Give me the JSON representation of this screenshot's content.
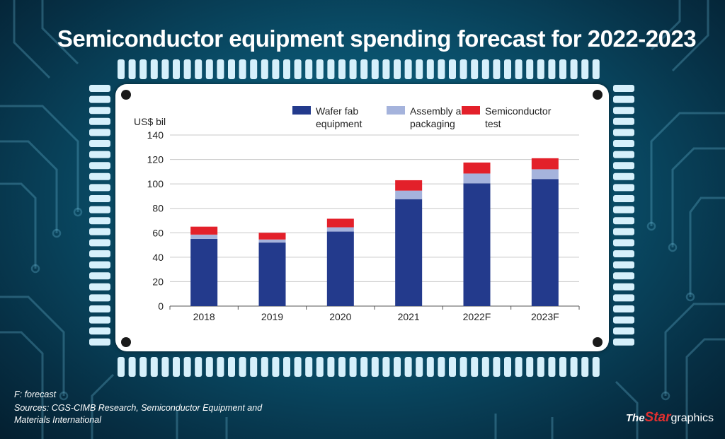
{
  "title": "Semiconductor equipment spending forecast for 2022-2023",
  "footnote": {
    "forecast_note": "F: forecast",
    "sources_line1": "Sources: CGS-CIMB Research, Semiconductor Equipment and",
    "sources_line2": "Materials International"
  },
  "brand": {
    "part1": "The",
    "part2": "Star",
    "part3": "graphics"
  },
  "colors": {
    "wafer": "#233a8c",
    "assembly": "#a5b3dc",
    "test": "#e3202a",
    "grid": "#c8c8c8"
  },
  "chart_data": {
    "type": "bar",
    "stacked": true,
    "categories": [
      "2018",
      "2019",
      "2020",
      "2021",
      "2022F",
      "2023F"
    ],
    "series": [
      {
        "name": "Wafer fab equipment",
        "color": "#233a8c",
        "values": [
          55.0,
          52.0,
          61.0,
          87.5,
          100.5,
          104.0
        ]
      },
      {
        "name": "Assembly and packaging",
        "color": "#a5b3dc",
        "values": [
          3.5,
          2.5,
          3.5,
          7.0,
          8.0,
          8.0
        ]
      },
      {
        "name": "Semiconductor test",
        "color": "#e3202a",
        "values": [
          6.5,
          5.5,
          7.0,
          8.5,
          9.0,
          9.0
        ]
      }
    ],
    "legend_labels": [
      [
        "Wafer fab",
        "equipment"
      ],
      [
        "Assembly and",
        "packaging"
      ],
      [
        "Semiconductor",
        "test"
      ]
    ],
    "ylabel": "US$ bil",
    "ylim": [
      0,
      140
    ],
    "yticks": [
      0,
      20,
      40,
      60,
      80,
      100,
      120,
      140
    ],
    "grid": true,
    "legend_position": "top"
  }
}
